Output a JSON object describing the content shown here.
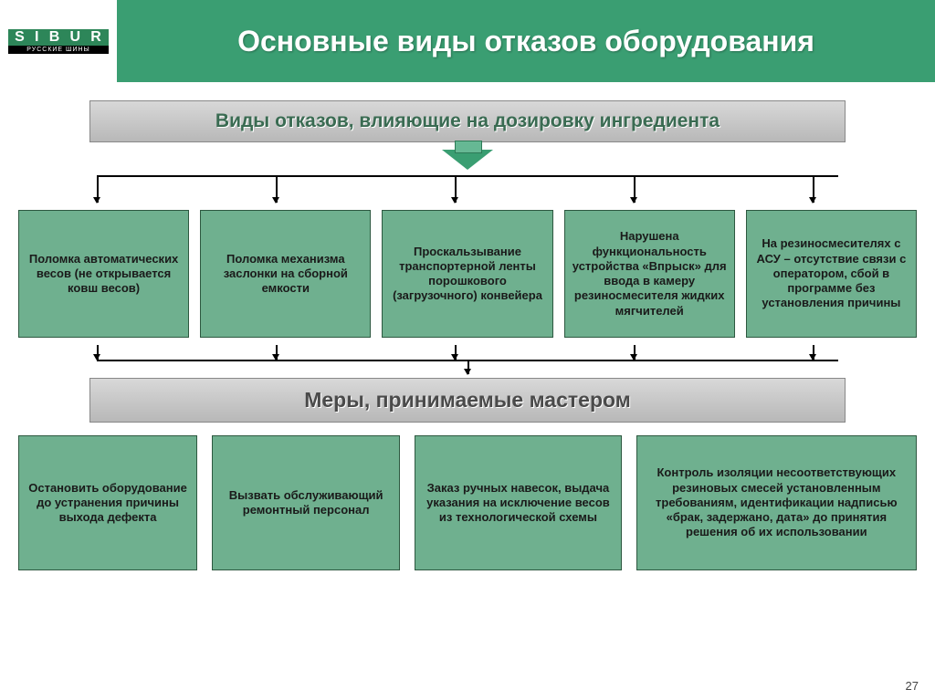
{
  "logo": {
    "text": "SIBUR",
    "sub": "РУССКИЕ ШИНЫ"
  },
  "title": "Основные виды отказов оборудования",
  "banner1": "Виды отказов, влияющие на дозировку ингредиента",
  "failures": [
    "Поломка автоматических весов\n(не открывается ковш весов)",
    "Поломка механизма заслонки на сборной емкости",
    "Проскальзывание транспортерной ленты порошкового (загрузочного) конвейера",
    "Нарушена функциональность устройства «Впрыск» для ввода в камеру резиносмесителя жидких мягчителей",
    "На резиносмесителях с АСУ – отсутствие связи с оператором, сбой в программе без установления причины"
  ],
  "banner2": "Меры, принимаемые мастером",
  "measures": [
    "Остановить оборудование до устранения причины выхода дефекта",
    "Вызвать обслуживающий ремонтный персонал",
    "Заказ ручных навесок, выдача указания на исключение весов из технологической схемы",
    "Контроль изоляции несоответствующих резиновых смесей установленным требованиям, идентификации надписью «брак, задержано, дата»  до принятия решения об их использовании"
  ],
  "pageNum": "27",
  "colors": {
    "primary": "#3a9e72",
    "box": "#6fb08f",
    "boxBorder": "#2d5840",
    "banner": "#c8c8c8",
    "bannerText": "#3a6b52"
  },
  "connTop": [
    88,
    284,
    480,
    676,
    872
  ],
  "connMid": [
    88,
    284,
    480,
    676,
    872
  ]
}
